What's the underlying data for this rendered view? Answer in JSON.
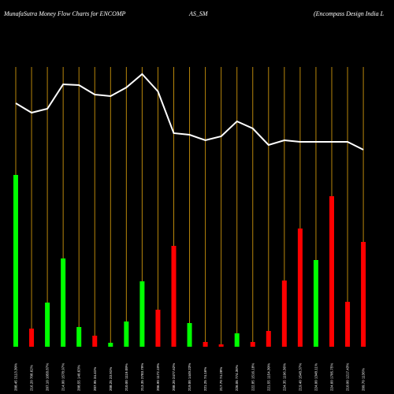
{
  "chart_data": {
    "type": "bar",
    "title_parts": [
      "MunafaSutra  Money Flow  Charts for ENCOMP",
      "AS_SM",
      "(Encompass Design  India  L"
    ],
    "categories": [
      "208.45 2113.30%",
      "216.20 708.62%",
      "207.10 1058.87%",
      "214.00 1578.97%",
      "208.55 140.63%",
      "207.95 34.41%",
      "208.25 23.91%",
      "210.00 1119.09%",
      "213.35 2783.79%",
      "206.90 1172.19%",
      "208.20 2477.62%",
      "219.00 1449.23%",
      "221.25 74.16%",
      "217.70 74.28%",
      "226.05 774.36%",
      "222.85 1516.18%",
      "221.55 1154.30%",
      "224.35 1196.36%",
      "219.40 1548.37%",
      "224.00 1348.11%",
      "224.60 1705.75%",
      "210.00 1217.43%",
      "209.70 1136%"
    ],
    "values": [
      218,
      23,
      56,
      112,
      25,
      14,
      5,
      32,
      83,
      47,
      128,
      30,
      6,
      3,
      17,
      6,
      20,
      84,
      150,
      110,
      191,
      57,
      133
    ],
    "colors": [
      "#00ff00",
      "#ff0000",
      "#00ff00",
      "#00ff00",
      "#00ff00",
      "#ff0000",
      "#00ff00",
      "#00ff00",
      "#00ff00",
      "#ff0000",
      "#ff0000",
      "#00ff00",
      "#ff0000",
      "#ff0000",
      "#00ff00",
      "#ff0000",
      "#ff0000",
      "#ff0000",
      "#ff0000",
      "#00ff00",
      "#ff0000",
      "#ff0000",
      "#ff0000"
    ],
    "line": {
      "color": "#ffffff",
      "values": [
        309,
        297,
        302,
        333,
        332,
        320,
        318,
        329,
        346,
        324,
        271,
        269,
        262,
        267,
        286,
        277,
        256,
        262,
        260,
        260,
        260,
        260,
        250
      ]
    },
    "ylim": [
      0,
      440
    ],
    "grid": true,
    "grid_color": "#b8860b"
  }
}
